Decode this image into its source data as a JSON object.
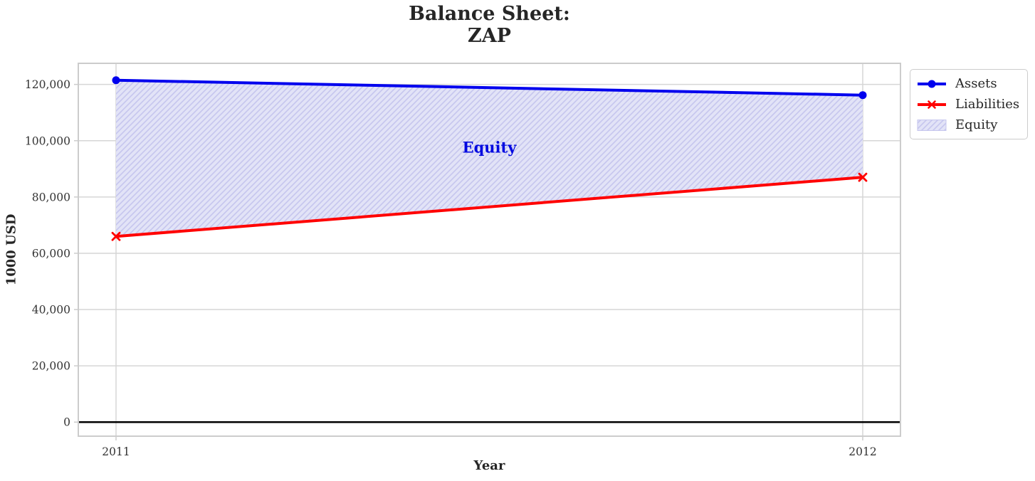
{
  "figure": {
    "title_line1": "Balance Sheet:",
    "title_line2": "ZAP"
  },
  "chart_data": {
    "type": "line",
    "title": "Balance Sheet: ZAP",
    "xlabel": "Year",
    "ylabel": "1000 USD",
    "categories": [
      "2011",
      "2012"
    ],
    "series": [
      {
        "name": "Assets",
        "values": [
          121500,
          116200
        ],
        "color": "#0000ee",
        "marker": "circle"
      },
      {
        "name": "Liabilities",
        "values": [
          66000,
          87000
        ],
        "color": "#ff0000",
        "marker": "x"
      }
    ],
    "area": {
      "name": "Equity",
      "between": [
        "Assets",
        "Liabilities"
      ],
      "fill": "#e2e3f7",
      "hatch_color": "#c6c6ee",
      "hatch": "/"
    },
    "annotation": {
      "text": "Equity",
      "color": "#0008e0",
      "x_frac": 0.5,
      "y_value": 97500
    },
    "ylim": [
      -5000,
      127500
    ],
    "yticks": [
      {
        "value": 0,
        "label": "0"
      },
      {
        "value": 20000,
        "label": "20,000"
      },
      {
        "value": 40000,
        "label": "40,000"
      },
      {
        "value": 60000,
        "label": "60,000"
      },
      {
        "value": 80000,
        "label": "80,000"
      },
      {
        "value": 100000,
        "label": "100,000"
      },
      {
        "value": 120000,
        "label": "120,000"
      }
    ],
    "xticks": [
      "2011",
      "2012"
    ],
    "grid": true,
    "legend_position": "upper right outside",
    "zero_line_color": "#000000",
    "grid_color": "#d6d6d6",
    "spine_color": "#cccccc",
    "tick_label_color": "#333333"
  },
  "legend": {
    "items": [
      {
        "label": "Assets"
      },
      {
        "label": "Liabilities"
      },
      {
        "label": "Equity"
      }
    ]
  }
}
